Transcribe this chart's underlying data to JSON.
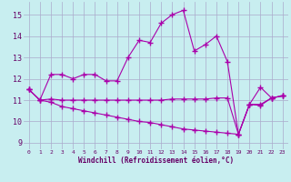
{
  "xlabel": "Windchill (Refroidissement éolien,°C)",
  "background_color": "#c8eef0",
  "line_color": "#aa00aa",
  "x": [
    0,
    1,
    2,
    3,
    4,
    5,
    6,
    7,
    8,
    9,
    10,
    11,
    12,
    13,
    14,
    15,
    16,
    17,
    18,
    19,
    20,
    21,
    22,
    23
  ],
  "line1_y": [
    11.5,
    11.0,
    12.2,
    12.2,
    12.0,
    12.2,
    12.2,
    11.9,
    11.9,
    13.0,
    13.8,
    13.7,
    14.6,
    15.0,
    15.2,
    13.3,
    13.6,
    14.0,
    12.8,
    9.4,
    10.8,
    11.6,
    11.1,
    11.2
  ],
  "line2_y": [
    11.5,
    11.0,
    11.05,
    11.0,
    11.0,
    11.0,
    11.0,
    11.0,
    11.0,
    11.0,
    11.0,
    11.0,
    11.0,
    11.05,
    11.05,
    11.05,
    11.05,
    11.1,
    11.1,
    9.4,
    10.8,
    10.8,
    11.1,
    11.2
  ],
  "line3_y": [
    11.5,
    11.0,
    10.9,
    10.7,
    10.6,
    10.5,
    10.4,
    10.3,
    10.2,
    10.1,
    10.0,
    9.95,
    9.85,
    9.75,
    9.65,
    9.6,
    9.55,
    9.5,
    9.45,
    9.4,
    10.8,
    10.75,
    11.1,
    11.2
  ],
  "ylim": [
    8.7,
    15.6
  ],
  "yticks": [
    9,
    10,
    11,
    12,
    13,
    14,
    15
  ],
  "xlim": [
    -0.5,
    23.5
  ],
  "xticks": [
    0,
    1,
    2,
    3,
    4,
    5,
    6,
    7,
    8,
    9,
    10,
    11,
    12,
    13,
    14,
    15,
    16,
    17,
    18,
    19,
    20,
    21,
    22,
    23
  ],
  "grid_color": "#aaaacc",
  "marker": "+",
  "markersize": 4,
  "linewidth": 0.8
}
